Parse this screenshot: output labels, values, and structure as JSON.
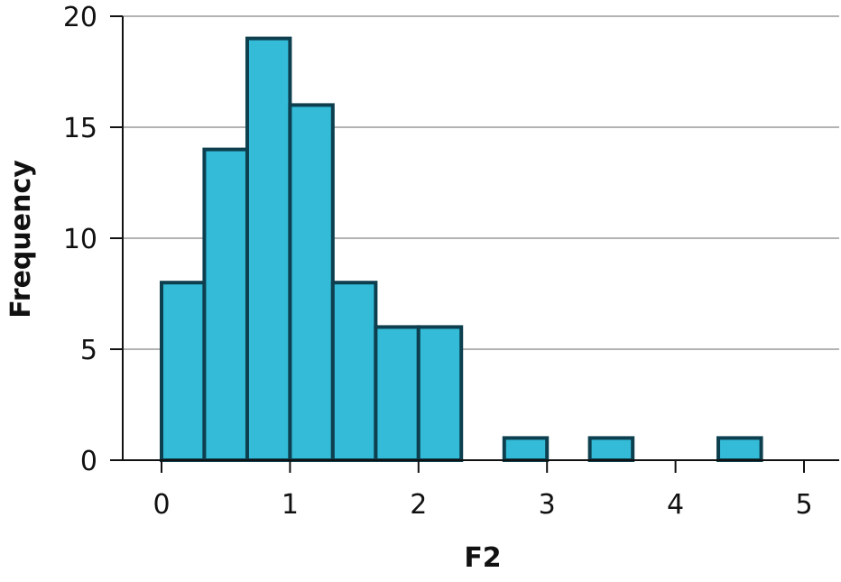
{
  "chart_data": {
    "type": "bar",
    "subtype": "histogram",
    "title": "",
    "xlabel": "F2",
    "ylabel": "Frequency",
    "bin_width": 0.333,
    "bins": [
      {
        "start": 0.0,
        "end": 0.333,
        "count": 8
      },
      {
        "start": 0.333,
        "end": 0.667,
        "count": 14
      },
      {
        "start": 0.667,
        "end": 1.0,
        "count": 19
      },
      {
        "start": 1.0,
        "end": 1.333,
        "count": 16
      },
      {
        "start": 1.333,
        "end": 1.667,
        "count": 8
      },
      {
        "start": 1.667,
        "end": 2.0,
        "count": 6
      },
      {
        "start": 2.0,
        "end": 2.333,
        "count": 6
      },
      {
        "start": 2.333,
        "end": 2.667,
        "count": 0
      },
      {
        "start": 2.667,
        "end": 3.0,
        "count": 1
      },
      {
        "start": 3.0,
        "end": 3.333,
        "count": 0
      },
      {
        "start": 3.333,
        "end": 3.667,
        "count": 1
      },
      {
        "start": 3.667,
        "end": 4.0,
        "count": 0
      },
      {
        "start": 4.0,
        "end": 4.333,
        "count": 0
      },
      {
        "start": 4.333,
        "end": 4.667,
        "count": 1
      }
    ],
    "xlim": [
      0,
      5
    ],
    "ylim": [
      0,
      20
    ],
    "xticks": [
      "0",
      "1",
      "2",
      "3",
      "4",
      "5"
    ],
    "yticks": [
      "0",
      "5",
      "10",
      "15",
      "20"
    ],
    "grid": "horizontal",
    "legend": "none",
    "colors": {
      "bar_fill": "#33bbd7",
      "bar_stroke": "#0e3f4f",
      "grid": "#b3b3b3",
      "axis": "#111111"
    }
  }
}
